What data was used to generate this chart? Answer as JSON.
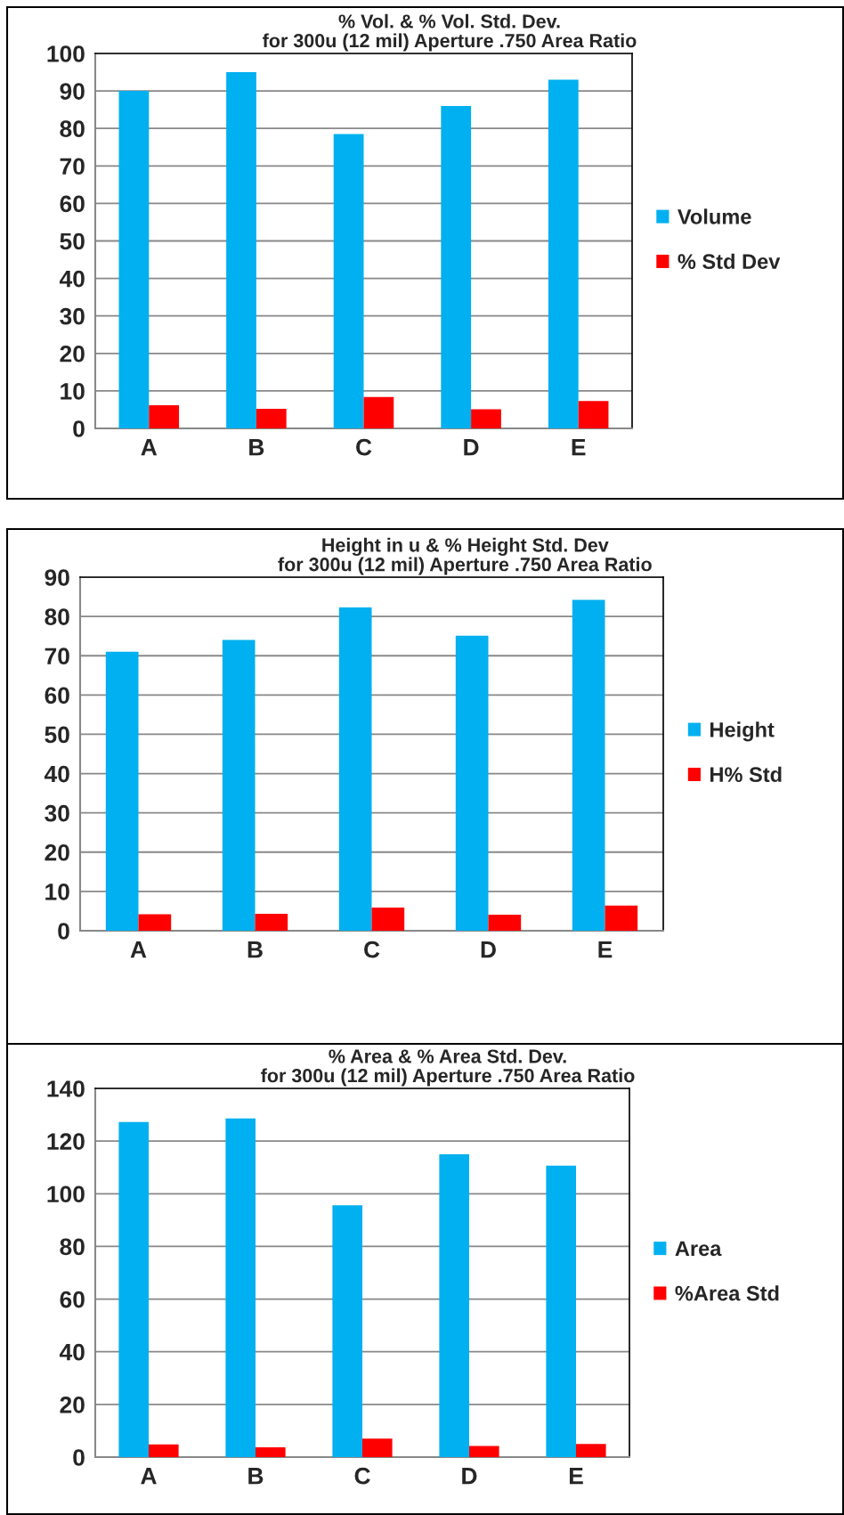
{
  "chart_data": [
    {
      "type": "bar",
      "title": "% Vol. & % Vol. Std. Dev.\nfor 300u (12 mil) Aperture .750 Area Ratio",
      "categories": [
        "A",
        "B",
        "C",
        "D",
        "E"
      ],
      "series": [
        {
          "name": "Volume",
          "color": "#00b0f0",
          "values": [
            90,
            95,
            78.5,
            86,
            93
          ]
        },
        {
          "name": "% Std Dev",
          "color": "#ff0000",
          "values": [
            6.2,
            5.2,
            8.4,
            5.1,
            7.3
          ]
        }
      ],
      "ylim": [
        0,
        100
      ],
      "yticks": [
        0,
        10,
        20,
        30,
        40,
        50,
        60,
        70,
        80,
        90,
        100
      ],
      "grid": "y",
      "legend": "right"
    },
    {
      "type": "bar",
      "title": "Height in u & % Height Std. Dev\nfor 300u (12 mil) Aperture .750 Area Ratio",
      "categories": [
        "A",
        "B",
        "C",
        "D",
        "E"
      ],
      "series": [
        {
          "name": "Height",
          "color": "#00b0f0",
          "values": [
            71,
            74,
            82.3,
            75.1,
            84.2
          ]
        },
        {
          "name": "H% Std",
          "color": "#ff0000",
          "values": [
            4.2,
            4.3,
            5.9,
            4.1,
            6.4
          ]
        }
      ],
      "ylim": [
        0,
        90
      ],
      "yticks": [
        0,
        10,
        20,
        30,
        40,
        50,
        60,
        70,
        80,
        90
      ],
      "grid": "y",
      "legend": "right"
    },
    {
      "type": "bar",
      "title": "% Area & % Area Std. Dev.\nfor 300u (12 mil) Aperture .750 Area Ratio",
      "categories": [
        "A",
        "B",
        "C",
        "D",
        "E"
      ],
      "series": [
        {
          "name": "Area",
          "color": "#00b0f0",
          "values": [
            127.2,
            128.6,
            95.6,
            115,
            110.7
          ]
        },
        {
          "name": "%Area Std",
          "color": "#ff0000",
          "values": [
            4.8,
            3.7,
            7.0,
            4.2,
            5.0
          ]
        }
      ],
      "ylim": [
        0,
        140
      ],
      "yticks": [
        0,
        20,
        40,
        60,
        80,
        100,
        120,
        140
      ],
      "grid": "y",
      "legend": "right"
    }
  ]
}
